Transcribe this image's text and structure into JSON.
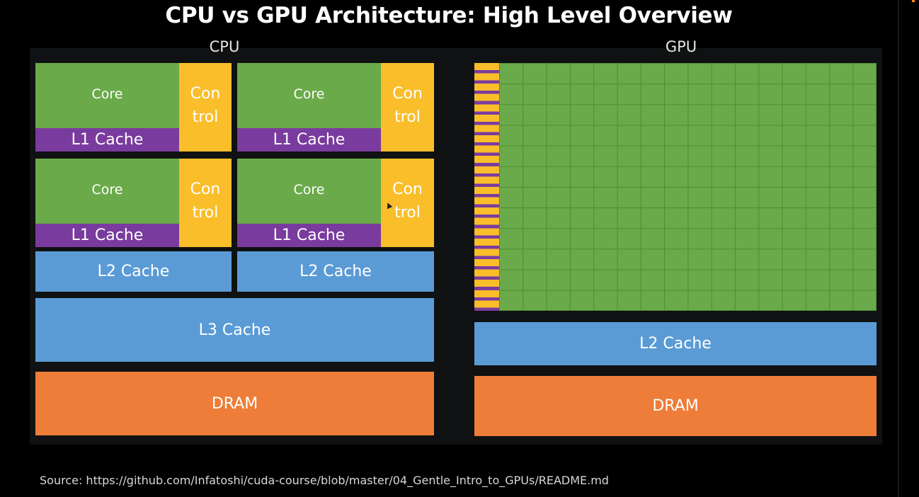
{
  "title": "CPU vs GPU Architecture: High Level Overview",
  "cpu": {
    "label": "CPU",
    "cores": [
      {
        "core": "Core",
        "l1": "L1 Cache",
        "control_top": "Con",
        "control_bottom": "trol"
      },
      {
        "core": "Core",
        "l1": "L1 Cache",
        "control_top": "Con",
        "control_bottom": "trol"
      },
      {
        "core": "Core",
        "l1": "L1 Cache",
        "control_top": "Con",
        "control_bottom": "trol"
      },
      {
        "core": "Core",
        "l1": "L1 Cache",
        "control_top": "Con",
        "control_bottom": "trol"
      }
    ],
    "l2_left": "L2 Cache",
    "l2_right": "L2 Cache",
    "l3": "L3 Cache",
    "dram": "DRAM"
  },
  "gpu": {
    "label": "GPU",
    "grid_columns": 16,
    "grid_rows": 12,
    "l2": "L2 Cache",
    "dram": "DRAM"
  },
  "colors": {
    "core": "#6aaa4a",
    "l1_cache": "#7a3b9e",
    "control": "#f9be2a",
    "cache": "#5b9bd5",
    "dram": "#ed7d38"
  },
  "source": "Source: https://github.com/Infatoshi/cuda-course/blob/master/04_Gentle_Intro_to_GPUs/README.md"
}
